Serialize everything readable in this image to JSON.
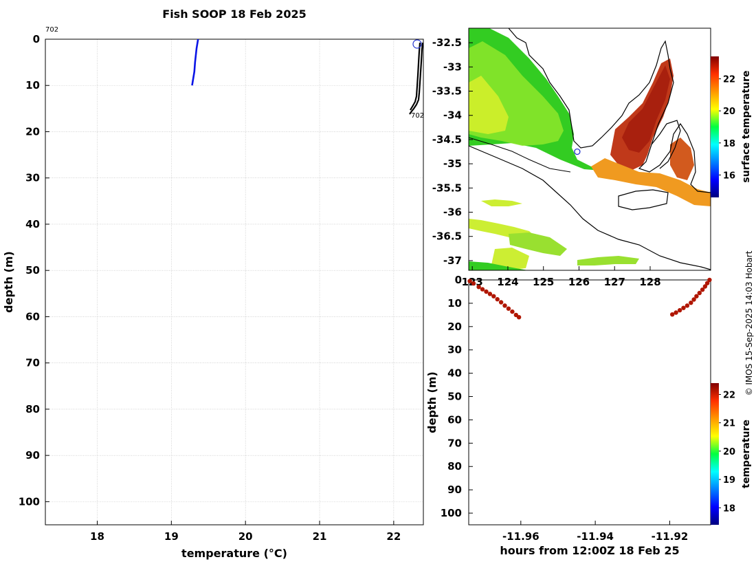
{
  "title": "Fish SOOP 18 Feb 2025",
  "credit": "© IMOS 15-Sep-2025 14:03 Hobart",
  "colors": {
    "profile_line": "#0a14e6",
    "track_line": "#000000",
    "dot": "#b01600",
    "marker": "#2233cc"
  },
  "chart_data": [
    {
      "id": "profile",
      "type": "line",
      "xlabel": "temperature (°C)",
      "ylabel": "depth (m)",
      "xlim": [
        17.3,
        22.4
      ],
      "ylim": [
        105,
        0
      ],
      "y_inverted": true,
      "xticks": [
        18,
        19,
        20,
        21,
        22
      ],
      "yticks": [
        0,
        10,
        20,
        30,
        40,
        50,
        60,
        70,
        80,
        90,
        100
      ],
      "grid": true,
      "annotations": [
        "702",
        "702"
      ],
      "series": [
        {
          "x": [
            19.36,
            19.34,
            19.32,
            19.31,
            19.29,
            19.28
          ],
          "y": [
            0,
            2,
            5,
            7,
            9,
            10
          ]
        }
      ]
    },
    {
      "id": "map",
      "type": "heatmap",
      "colorbar_label": "surface temperature",
      "colorbar_ticks": [
        16,
        18,
        20,
        22
      ],
      "clim": [
        14.6,
        23.4
      ],
      "xlim": [
        122.9,
        129.7
      ],
      "ylim": [
        -37.2,
        -32.2
      ],
      "xticks": [
        123,
        124,
        125,
        126,
        127,
        128
      ],
      "xtick_labels": [
        "123",
        "124",
        "125",
        "126",
        "127",
        "128"
      ],
      "yticks": [
        -32.5,
        -33,
        -33.5,
        -34,
        -34.5,
        -35,
        -35.5,
        -36,
        -36.5,
        -37
      ],
      "ytick_labels": [
        "-32.5",
        "-33",
        "-33.5",
        "-34",
        "-34.5",
        "-35",
        "-35.5",
        "-36",
        "-36.5",
        "-37"
      ],
      "marker": {
        "lon": 125.95,
        "lat": -34.75
      }
    },
    {
      "id": "time_depth",
      "type": "scatter",
      "xlabel": "hours from 12:00Z 18 Feb 25",
      "ylabel": "depth (m)",
      "colorbar_label": "temperature",
      "colorbar_ticks": [
        18,
        19,
        20,
        21,
        22
      ],
      "clim": [
        17.4,
        22.4
      ],
      "xlim": [
        -11.974,
        -11.909
      ],
      "ylim": [
        105,
        0
      ],
      "y_inverted": true,
      "xticks": [
        -11.96,
        -11.94,
        -11.92
      ],
      "xtick_labels": [
        "-11.96",
        "-11.94",
        "-11.92"
      ],
      "yticks": [
        0,
        10,
        20,
        30,
        40,
        50,
        60,
        70,
        80,
        90,
        100
      ],
      "points": [
        {
          "x": -11.9737,
          "y": 0.5
        },
        {
          "x": -11.9727,
          "y": 1.5
        },
        {
          "x": -11.9713,
          "y": 3
        },
        {
          "x": -11.9703,
          "y": 4
        },
        {
          "x": -11.9693,
          "y": 5
        },
        {
          "x": -11.9683,
          "y": 6
        },
        {
          "x": -11.9673,
          "y": 7
        },
        {
          "x": -11.9663,
          "y": 8.3
        },
        {
          "x": -11.9653,
          "y": 9.6
        },
        {
          "x": -11.9643,
          "y": 11
        },
        {
          "x": -11.9633,
          "y": 12.3
        },
        {
          "x": -11.9623,
          "y": 13.6
        },
        {
          "x": -11.9613,
          "y": 15
        },
        {
          "x": -11.9605,
          "y": 16
        },
        {
          "x": -11.9193,
          "y": 14.8
        },
        {
          "x": -11.9183,
          "y": 14
        },
        {
          "x": -11.9173,
          "y": 13
        },
        {
          "x": -11.9163,
          "y": 12
        },
        {
          "x": -11.9153,
          "y": 11
        },
        {
          "x": -11.9143,
          "y": 9.8
        },
        {
          "x": -11.9135,
          "y": 8.4
        },
        {
          "x": -11.9128,
          "y": 7
        },
        {
          "x": -11.912,
          "y": 5.6
        },
        {
          "x": -11.9112,
          "y": 4.2
        },
        {
          "x": -11.9105,
          "y": 2.8
        },
        {
          "x": -11.9099,
          "y": 1.4
        },
        {
          "x": -11.9093,
          "y": 0
        }
      ]
    }
  ]
}
